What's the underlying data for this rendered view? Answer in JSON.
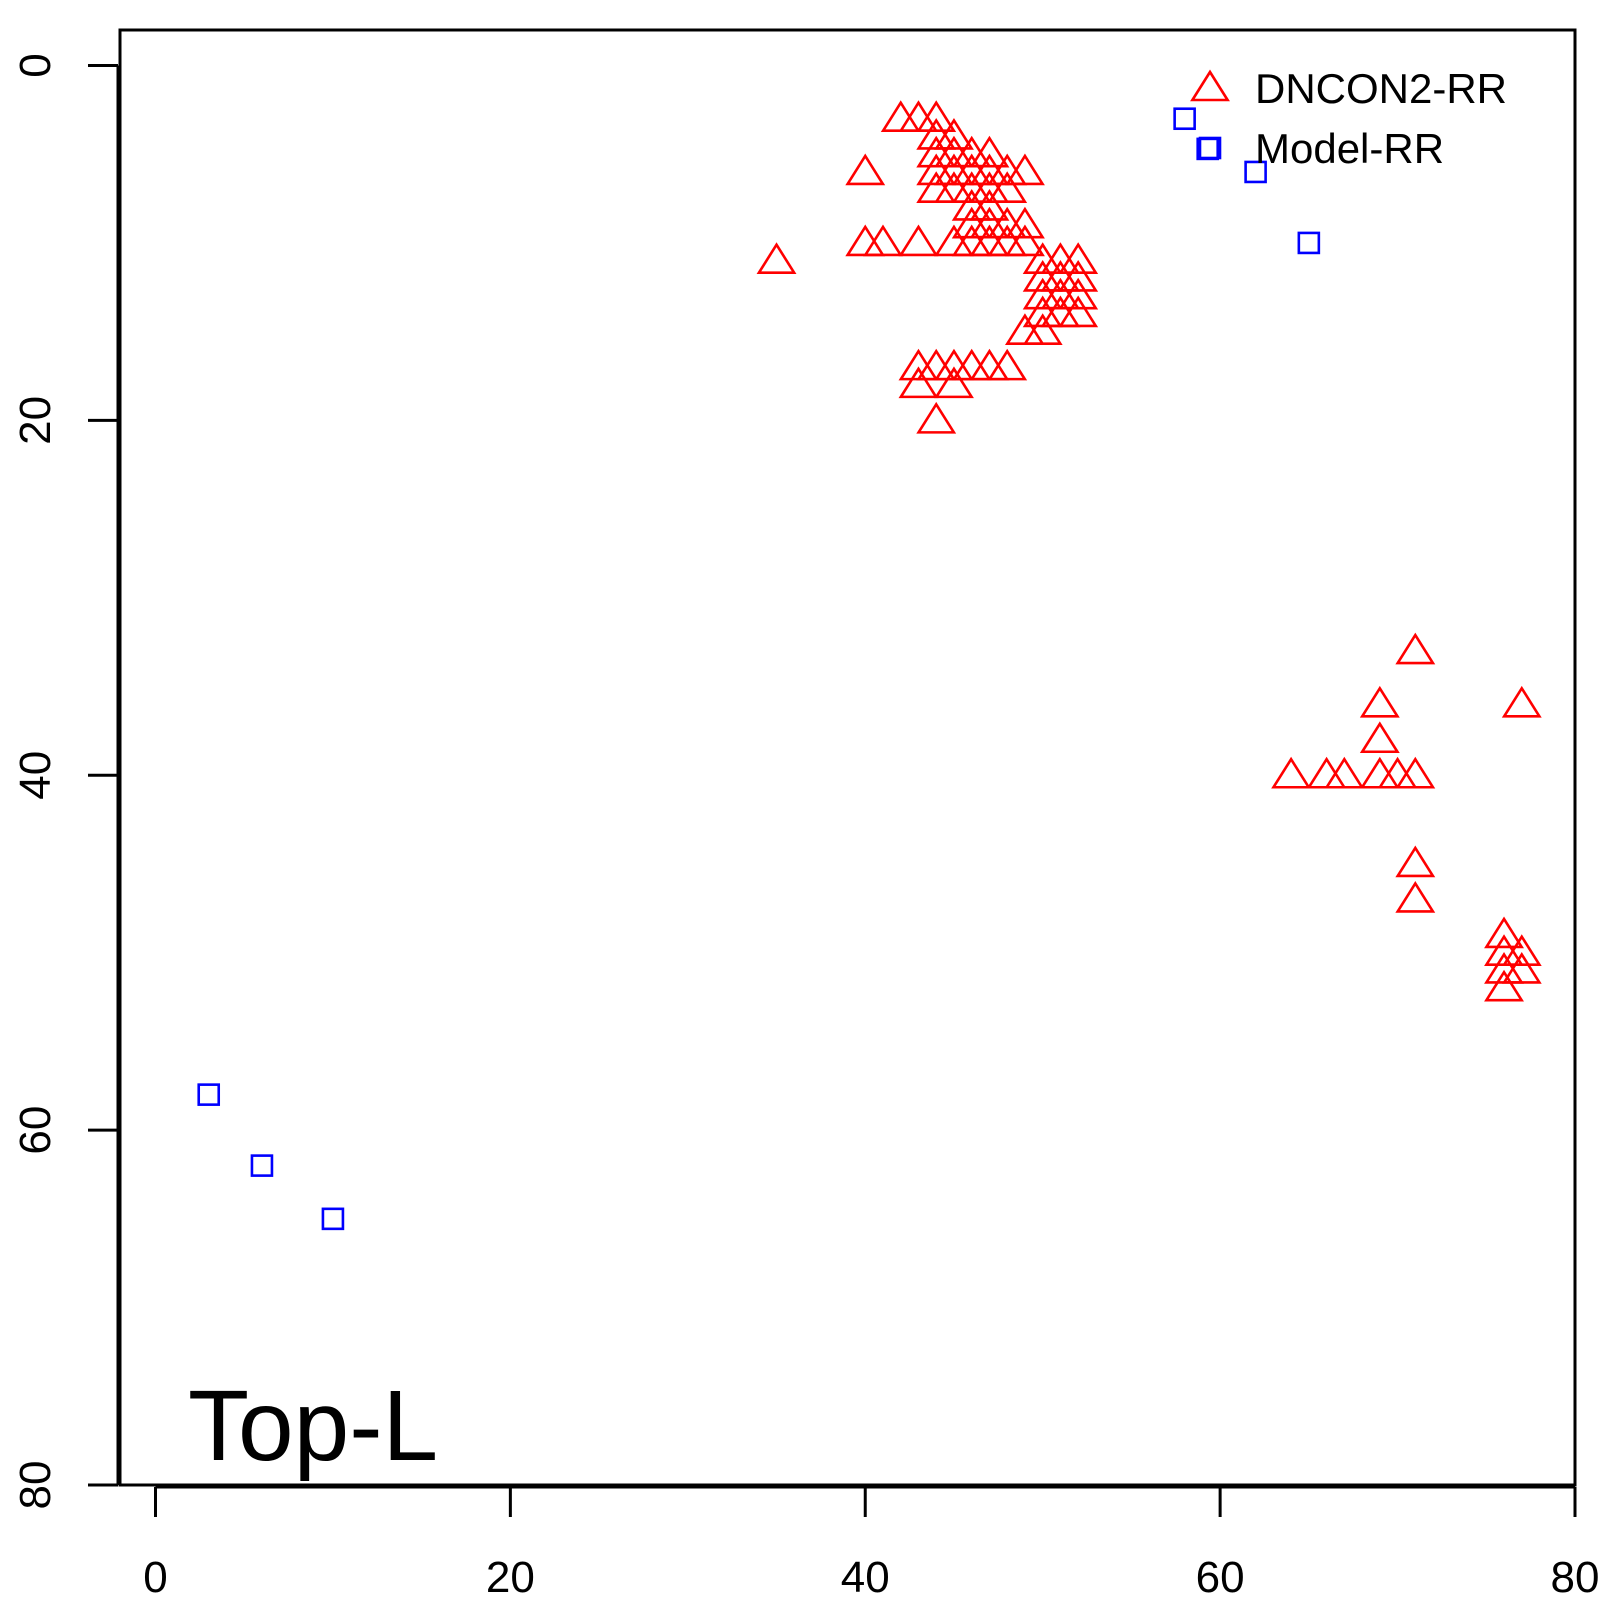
{
  "chart_data": {
    "type": "scatter",
    "title": "",
    "xlabel": "",
    "ylabel": "",
    "xlim": [
      -2,
      80
    ],
    "ylim": [
      80,
      -2
    ],
    "y_axis_reversed": true,
    "x_ticks": [
      "0",
      "20",
      "40",
      "60",
      "80"
    ],
    "y_ticks": [
      "0",
      "20",
      "40",
      "60",
      "80"
    ],
    "panel_label": "Top-L",
    "legend_placement": "top-right",
    "grid": false,
    "series": [
      {
        "name": "DNCON2-RR",
        "marker": "triangle",
        "color": "#ff0000",
        "points": [
          [
            35,
            11
          ],
          [
            40,
            6
          ],
          [
            40,
            10
          ],
          [
            41,
            10
          ],
          [
            42,
            3
          ],
          [
            43,
            3
          ],
          [
            43,
            10
          ],
          [
            44,
            3
          ],
          [
            44,
            4
          ],
          [
            44,
            5
          ],
          [
            44,
            6
          ],
          [
            44,
            7
          ],
          [
            45,
            4
          ],
          [
            45,
            5
          ],
          [
            45,
            6
          ],
          [
            45,
            7
          ],
          [
            45,
            10
          ],
          [
            46,
            5
          ],
          [
            46,
            6
          ],
          [
            46,
            7
          ],
          [
            46,
            8
          ],
          [
            46,
            9
          ],
          [
            46,
            10
          ],
          [
            47,
            5
          ],
          [
            47,
            6
          ],
          [
            47,
            7
          ],
          [
            47,
            8
          ],
          [
            47,
            9
          ],
          [
            47,
            10
          ],
          [
            48,
            6
          ],
          [
            48,
            7
          ],
          [
            48,
            9
          ],
          [
            48,
            10
          ],
          [
            49,
            6
          ],
          [
            49,
            9
          ],
          [
            49,
            10
          ],
          [
            49,
            15
          ],
          [
            50,
            11
          ],
          [
            50,
            12
          ],
          [
            50,
            13
          ],
          [
            50,
            14
          ],
          [
            50,
            15
          ],
          [
            51,
            11
          ],
          [
            51,
            12
          ],
          [
            51,
            13
          ],
          [
            51,
            14
          ],
          [
            52,
            11
          ],
          [
            52,
            12
          ],
          [
            52,
            13
          ],
          [
            52,
            14
          ],
          [
            43,
            17
          ],
          [
            43,
            18
          ],
          [
            44,
            17
          ],
          [
            45,
            17
          ],
          [
            45,
            18
          ],
          [
            46,
            17
          ],
          [
            47,
            17
          ],
          [
            48,
            17
          ],
          [
            44,
            20
          ],
          [
            71,
            33
          ],
          [
            69,
            36
          ],
          [
            77,
            36
          ],
          [
            69,
            38
          ],
          [
            64,
            40
          ],
          [
            66,
            40
          ],
          [
            67,
            40
          ],
          [
            69,
            40
          ],
          [
            70,
            40
          ],
          [
            71,
            40
          ],
          [
            71,
            45
          ],
          [
            71,
            47
          ],
          [
            76,
            49
          ],
          [
            76,
            50
          ],
          [
            77,
            50
          ],
          [
            76,
            51
          ],
          [
            77,
            51
          ],
          [
            76,
            52
          ]
        ]
      },
      {
        "name": "Model-RR",
        "marker": "square",
        "color": "#0000ff",
        "points": [
          [
            58,
            3
          ],
          [
            59.3,
            4.7
          ],
          [
            62,
            6
          ],
          [
            65,
            10
          ],
          [
            3,
            58
          ],
          [
            6,
            62
          ],
          [
            10,
            65
          ]
        ]
      }
    ]
  }
}
